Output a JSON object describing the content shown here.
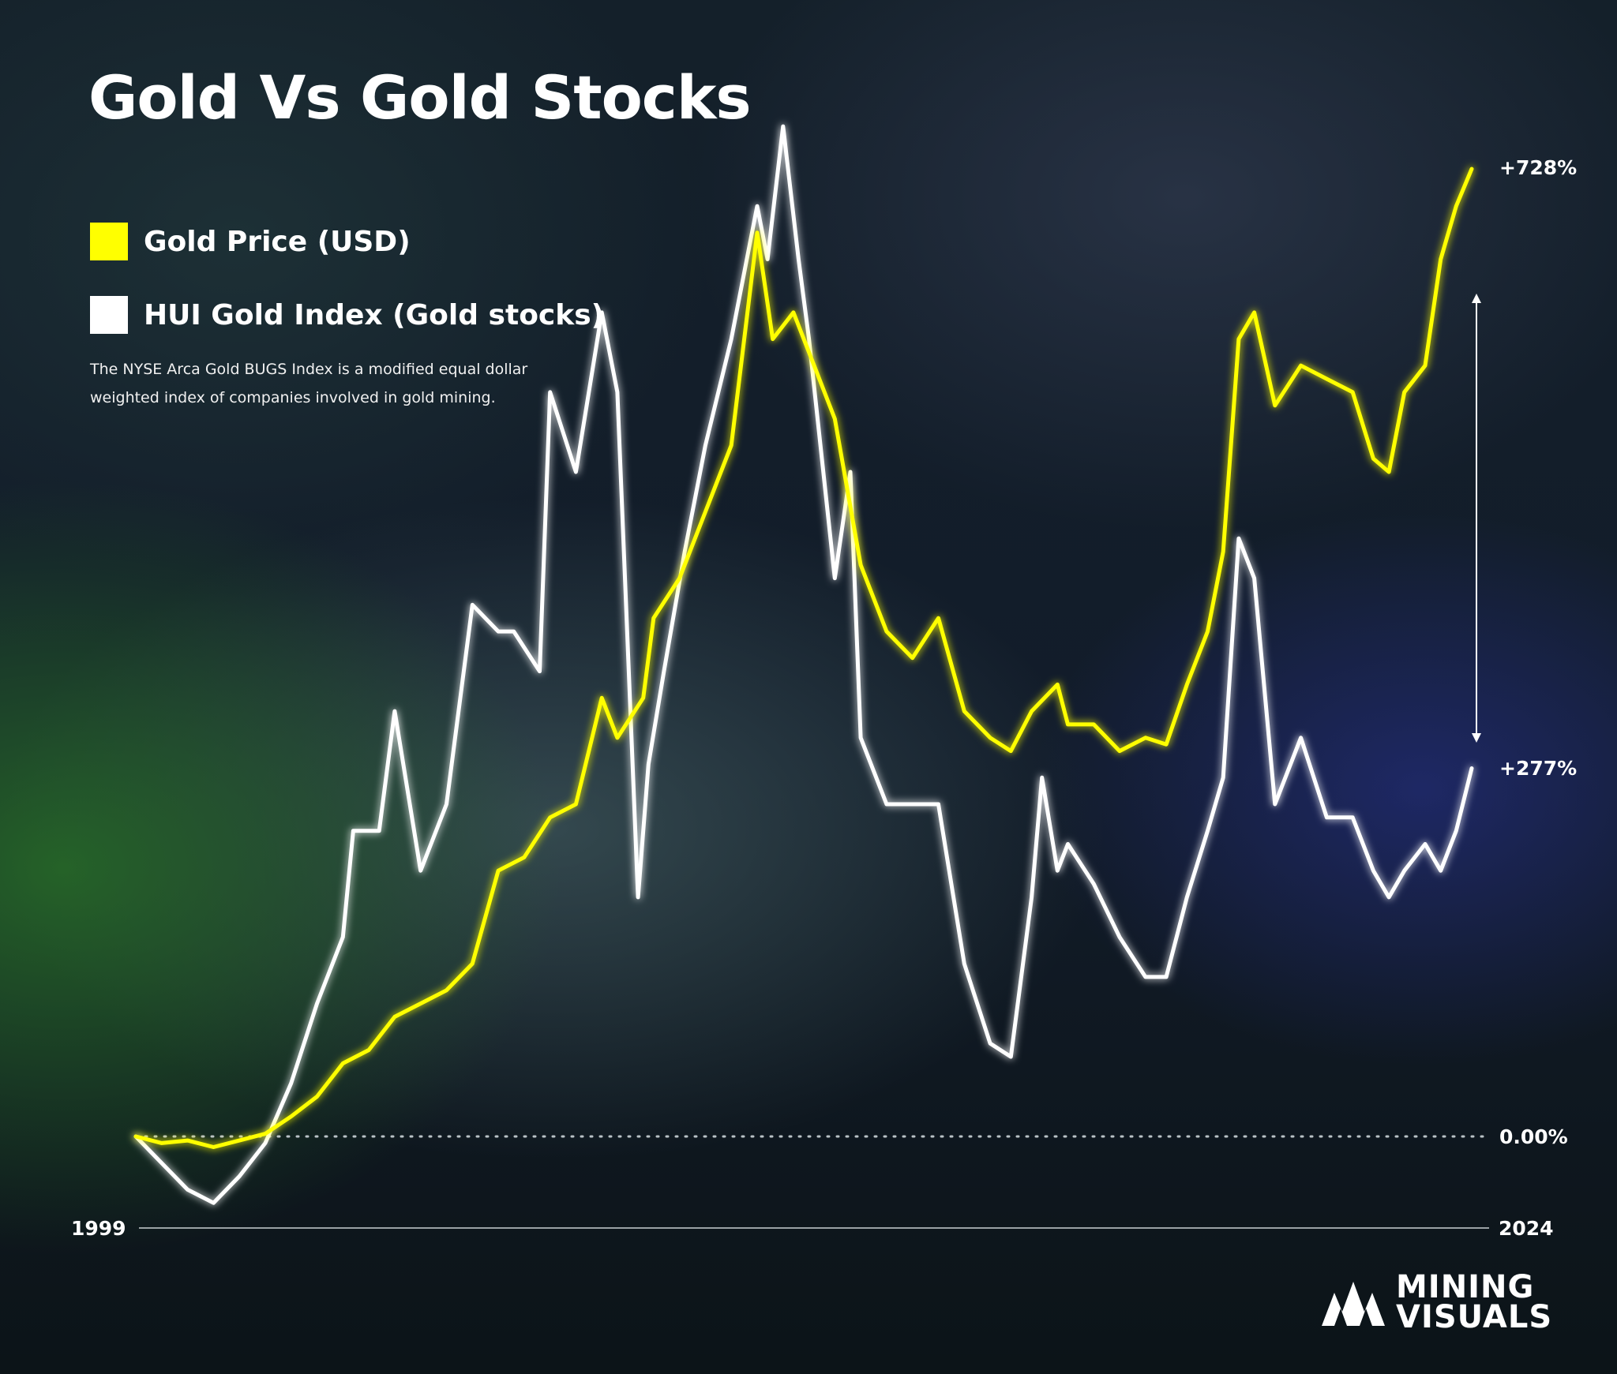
{
  "title": "Gold Vs Gold Stocks",
  "legend": [
    {
      "label": "Gold Price (USD)",
      "color": "#ffff00"
    },
    {
      "label": "HUI Gold Index (Gold stocks)",
      "color": "#ffffff"
    }
  ],
  "note": "The NYSE Arca Gold BUGS Index is a modified equal dollar weighted index of companies involved in gold mining.",
  "brand": {
    "line1": "MINING",
    "line2": "VISUALS"
  },
  "chart_data": {
    "type": "line",
    "title": "Gold Vs Gold Stocks",
    "x_start_label": "1999",
    "x_end_label": "2024",
    "baseline_label": "0.00%",
    "end_labels": [
      {
        "series": "Gold Price (USD)",
        "text": "+728%"
      },
      {
        "series": "HUI Gold Index (Gold stocks)",
        "text": "+277%"
      }
    ],
    "ylim": [
      -55,
      810
    ],
    "grid": false,
    "legend_position": "top-left",
    "series": [
      {
        "name": "Gold Price (USD)",
        "color": "#ffff00",
        "x": [
          1999,
          1999.5,
          2000,
          2000.5,
          2001,
          2001.5,
          2002,
          2002.5,
          2003,
          2003.5,
          2004,
          2004.5,
          2005,
          2005.5,
          2006,
          2006.5,
          2007,
          2007.5,
          2008,
          2008.3,
          2008.8,
          2009,
          2009.5,
          2010,
          2010.5,
          2011,
          2011.3,
          2011.7,
          2012,
          2012.5,
          2013,
          2013.5,
          2014,
          2014.5,
          2015,
          2015.5,
          2015.9,
          2016.3,
          2016.8,
          2017,
          2017.5,
          2018,
          2018.5,
          2018.9,
          2019.3,
          2019.7,
          2020,
          2020.3,
          2020.6,
          2021,
          2021.5,
          2022,
          2022.5,
          2022.9,
          2023.2,
          2023.5,
          2023.9,
          2024.2,
          2024.5,
          2024.8
        ],
        "y": [
          0,
          -5,
          -3,
          -8,
          -3,
          2,
          15,
          30,
          55,
          65,
          90,
          100,
          110,
          130,
          200,
          210,
          240,
          250,
          330,
          300,
          330,
          390,
          420,
          470,
          520,
          680,
          600,
          620,
          590,
          540,
          430,
          380,
          360,
          390,
          320,
          300,
          290,
          320,
          340,
          310,
          310,
          290,
          300,
          295,
          340,
          380,
          440,
          600,
          620,
          550,
          580,
          570,
          560,
          510,
          500,
          560,
          580,
          660,
          700,
          728
        ]
      },
      {
        "name": "HUI Gold Index (Gold stocks)",
        "color": "#ffffff",
        "x": [
          1999,
          1999.5,
          2000,
          2000.5,
          2001,
          2001.5,
          2002,
          2002.5,
          2003,
          2003.2,
          2003.7,
          2004,
          2004.5,
          2005,
          2005.5,
          2006,
          2006.3,
          2006.8,
          2007,
          2007.5,
          2008,
          2008.3,
          2008.7,
          2008.9,
          2009.2,
          2009.6,
          2010,
          2010.5,
          2011,
          2011.2,
          2011.5,
          2011.8,
          2012,
          2012.5,
          2012.8,
          2013,
          2013.5,
          2014,
          2014.5,
          2015,
          2015.5,
          2015.9,
          2016.3,
          2016.5,
          2016.8,
          2017,
          2017.5,
          2018,
          2018.5,
          2018.9,
          2019.3,
          2019.7,
          2020,
          2020.3,
          2020.6,
          2021,
          2021.5,
          2022,
          2022.5,
          2022.9,
          2023.2,
          2023.5,
          2023.9,
          2024.2,
          2024.5,
          2024.8
        ],
        "y": [
          0,
          -20,
          -40,
          -50,
          -30,
          -5,
          40,
          100,
          150,
          230,
          230,
          320,
          200,
          250,
          400,
          380,
          380,
          350,
          560,
          500,
          620,
          560,
          180,
          280,
          350,
          440,
          520,
          600,
          700,
          660,
          760,
          660,
          600,
          420,
          500,
          300,
          250,
          250,
          250,
          130,
          70,
          60,
          180,
          270,
          200,
          220,
          190,
          150,
          120,
          120,
          180,
          230,
          270,
          450,
          420,
          250,
          300,
          240,
          240,
          200,
          180,
          200,
          220,
          200,
          230,
          277
        ]
      }
    ]
  }
}
